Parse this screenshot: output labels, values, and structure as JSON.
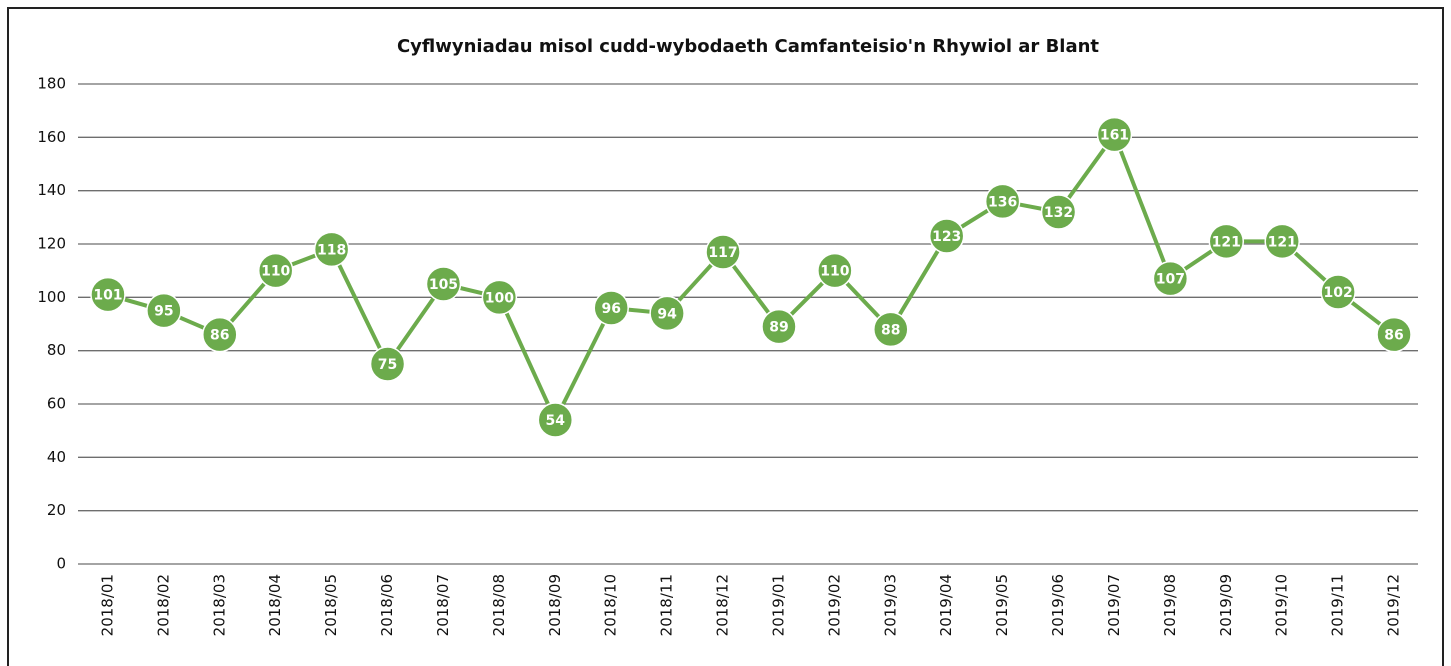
{
  "chart_data": {
    "type": "line",
    "title": "Cyflwyniadau misol cudd-wybodaeth Camfanteisio'n Rhywiol ar Blant",
    "categories": [
      "2018/01",
      "2018/02",
      "2018/03",
      "2018/04",
      "2018/05",
      "2018/06",
      "2018/07",
      "2018/08",
      "2018/09",
      "2018/10",
      "2018/11",
      "2018/12",
      "2019/01",
      "2019/02",
      "2019/03",
      "2019/04",
      "2019/05",
      "2019/06",
      "2019/07",
      "2019/08",
      "2019/09",
      "2019/10",
      "2019/11",
      "2019/12"
    ],
    "values": [
      101,
      95,
      86,
      110,
      118,
      75,
      105,
      100,
      54,
      96,
      94,
      117,
      89,
      110,
      88,
      123,
      136,
      132,
      161,
      107,
      121,
      121,
      102,
      86
    ],
    "color": "#6cab4c",
    "ylim": [
      0,
      180
    ],
    "yticks": [
      0,
      20,
      40,
      60,
      80,
      100,
      120,
      140,
      160,
      180
    ],
    "grid": true
  }
}
